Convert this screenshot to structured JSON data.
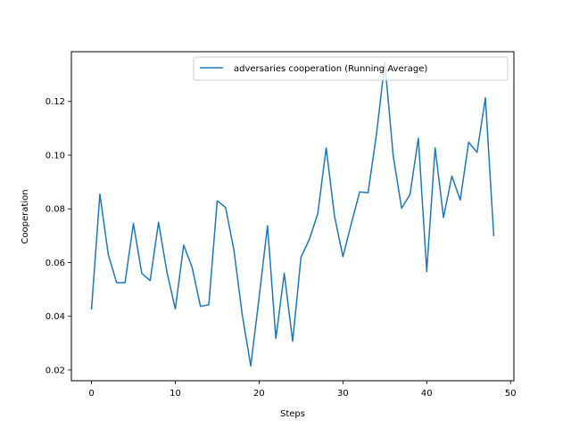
{
  "chart_data": {
    "type": "line",
    "title": "",
    "xlabel": "Steps",
    "ylabel": "Cooperation",
    "xlim": [
      -2.4,
      50.4
    ],
    "ylim": [
      0.016,
      0.1385
    ],
    "xticks": [
      0,
      10,
      20,
      30,
      40,
      50
    ],
    "yticks": [
      0.02,
      0.04,
      0.06,
      0.08,
      0.1,
      0.12
    ],
    "ytick_labels": [
      "0.02",
      "0.04",
      "0.06",
      "0.08",
      "0.10",
      "0.12"
    ],
    "grid": false,
    "legend_position": "top-right",
    "series": [
      {
        "name": "adversaries cooperation (Running Average)",
        "color": "#1f77b4",
        "x": [
          0,
          1,
          2,
          3,
          4,
          5,
          6,
          7,
          8,
          9,
          10,
          11,
          12,
          13,
          14,
          15,
          16,
          17,
          18,
          19,
          20,
          21,
          22,
          23,
          24,
          25,
          26,
          27,
          28,
          29,
          30,
          31,
          32,
          33,
          34,
          35,
          36,
          37,
          38,
          39,
          40,
          41,
          42,
          43,
          44,
          45,
          46,
          47,
          48
        ],
        "values": [
          0.0425,
          0.0855,
          0.063,
          0.0525,
          0.0525,
          0.0745,
          0.056,
          0.0533,
          0.075,
          0.0565,
          0.0427,
          0.0665,
          0.0583,
          0.0437,
          0.0443,
          0.083,
          0.0805,
          0.0645,
          0.0403,
          0.0215,
          0.047,
          0.0737,
          0.0317,
          0.056,
          0.0307,
          0.062,
          0.0687,
          0.0782,
          0.1027,
          0.0772,
          0.0622,
          0.0745,
          0.0863,
          0.086,
          0.1077,
          0.1345,
          0.0997,
          0.0802,
          0.0853,
          0.1063,
          0.0567,
          0.1027,
          0.0768,
          0.0922,
          0.0833,
          0.1048,
          0.101,
          0.1213,
          0.0698
        ]
      }
    ]
  }
}
